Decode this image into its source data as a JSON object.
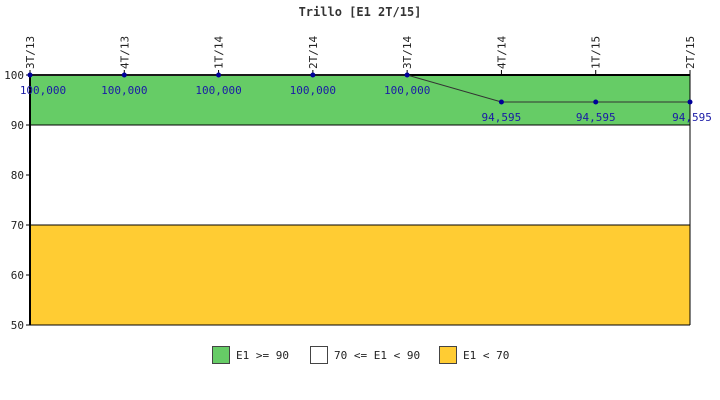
{
  "chart_data": {
    "type": "line",
    "title": "Trillo [E1 2T/15]",
    "categories": [
      "3T/13",
      "4T/13",
      "1T/14",
      "2T/14",
      "3T/14",
      "4T/14",
      "1T/15",
      "2T/15"
    ],
    "series": [
      {
        "values": [
          100,
          100,
          100,
          100,
          100,
          94.595,
          94.595,
          94.595
        ],
        "value_labels": [
          "100,000",
          "100,000",
          "100,000",
          "100,000",
          "100,000",
          "94,595",
          "94,595",
          "94,595"
        ],
        "color": "#000099"
      }
    ],
    "ylim": [
      50,
      100
    ],
    "yticks": [
      50,
      60,
      70,
      80,
      90,
      100
    ],
    "bands": [
      {
        "from": 90,
        "to": 100,
        "color": "#66cc66",
        "label": "E1 >= 90"
      },
      {
        "from": 70,
        "to": 90,
        "color": "#ffffff",
        "label": "70 <= E1 < 90"
      },
      {
        "from": 50,
        "to": 70,
        "color": "#ffcc33",
        "label": "E1 < 70"
      }
    ],
    "legend_position": "bottom"
  }
}
